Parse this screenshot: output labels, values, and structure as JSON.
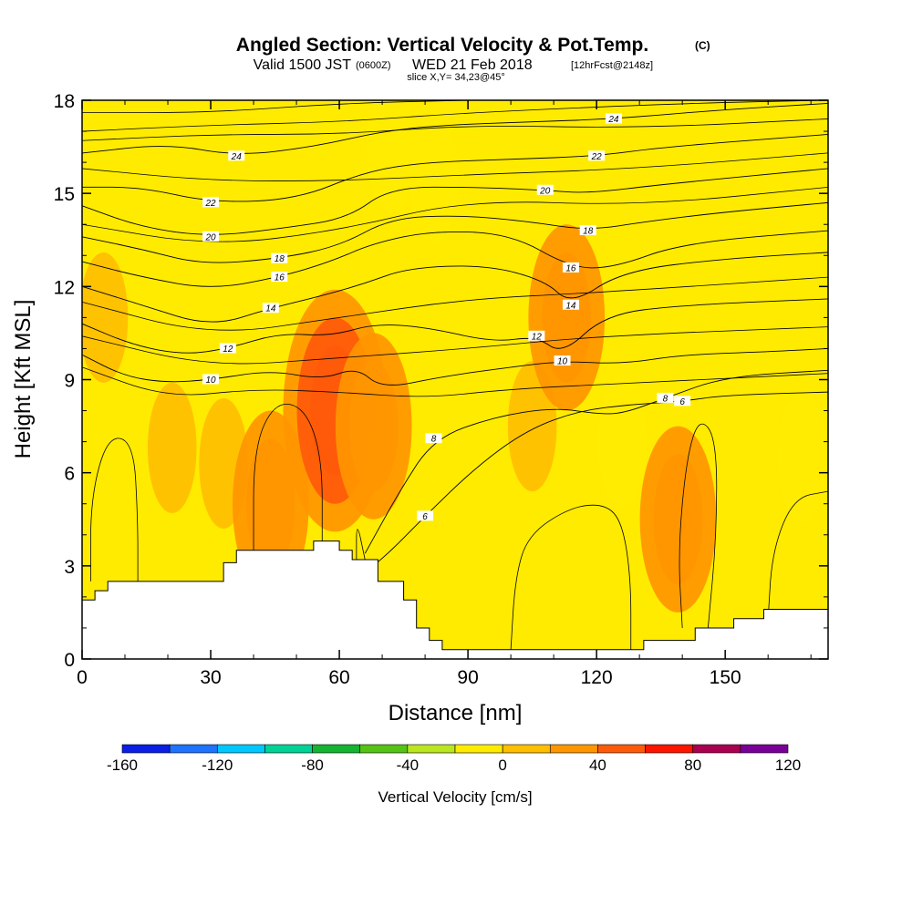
{
  "chart_data": {
    "type": "heatmap",
    "title": "Angled Section: Vertical Velocity & Pot.Temp.",
    "title_tag": "(C)",
    "subtitle": {
      "valid": "Valid 1500 JST",
      "utc": "(0600Z)",
      "date": "WED 21 Feb 2018",
      "forecast": "[12hrFcst@2148z]",
      "slice": "slice X,Y= 34,23@45°"
    },
    "xlabel": "Distance [nm]",
    "ylabel": "Height [Kft MSL]",
    "xlim": [
      0,
      174
    ],
    "ylim": [
      0,
      18
    ],
    "x_ticks": [
      0,
      30,
      60,
      90,
      120,
      150
    ],
    "x_tick_labels": [
      "0",
      "30",
      "60",
      "90",
      "120",
      "150"
    ],
    "y_ticks": [
      0,
      3,
      6,
      9,
      12,
      15,
      18
    ],
    "y_tick_labels": [
      "0",
      "3",
      "6",
      "9",
      "12",
      "15",
      "18"
    ],
    "colorbar": {
      "title": "Vertical Velocity [cm/s]",
      "min": -160,
      "max": 120,
      "step": 20,
      "tick_labels": [
        "-160",
        "-120",
        "-80",
        "-40",
        "0",
        "40",
        "80",
        "120"
      ],
      "colors": [
        "#0a1ee6",
        "#1e73ff",
        "#00c8ff",
        "#00d296",
        "#14b432",
        "#55c314",
        "#b9e61e",
        "#ffeb00",
        "#ffbe00",
        "#ff9600",
        "#ff5a0a",
        "#ff1400",
        "#aa0050",
        "#780096"
      ]
    },
    "velocity_cells": [
      {
        "x": 5,
        "z": 11,
        "w": 8
      },
      {
        "x": 21,
        "z": 6.8,
        "w": 14
      },
      {
        "x": 33,
        "z": 6.3,
        "w": 12
      },
      {
        "x": 44,
        "z": 5,
        "w": 22
      },
      {
        "x": 59,
        "z": 8,
        "w": 45
      },
      {
        "x": 68,
        "z": 7.5,
        "w": 38
      },
      {
        "x": 82,
        "z": 15.5,
        "w": -7
      },
      {
        "x": 72,
        "z": 16.5,
        "w": -12
      },
      {
        "x": 105,
        "z": 7.5,
        "w": 6
      },
      {
        "x": 113,
        "z": 11,
        "w": 30
      },
      {
        "x": 126,
        "z": 7,
        "w": -7
      },
      {
        "x": 139,
        "z": 4.5,
        "w": 28
      },
      {
        "x": 168,
        "z": 6.5,
        "w": -6
      }
    ],
    "terrain": [
      [
        0,
        1.9
      ],
      [
        3,
        1.9
      ],
      [
        3,
        2.2
      ],
      [
        6,
        2.2
      ],
      [
        6,
        2.5
      ],
      [
        33,
        2.5
      ],
      [
        33,
        3.1
      ],
      [
        36,
        3.1
      ],
      [
        36,
        3.5
      ],
      [
        54,
        3.5
      ],
      [
        54,
        3.8
      ],
      [
        60,
        3.8
      ],
      [
        60,
        3.5
      ],
      [
        63,
        3.5
      ],
      [
        63,
        3.2
      ],
      [
        69,
        3.2
      ],
      [
        69,
        2.5
      ],
      [
        75,
        2.5
      ],
      [
        75,
        1.9
      ],
      [
        78,
        1.9
      ],
      [
        78,
        1.0
      ],
      [
        81,
        1.0
      ],
      [
        81,
        0.6
      ],
      [
        84,
        0.6
      ],
      [
        84,
        0.3
      ],
      [
        131,
        0.3
      ],
      [
        131,
        0.6
      ],
      [
        143,
        0.6
      ],
      [
        143,
        1.0
      ],
      [
        152,
        1.0
      ],
      [
        152,
        1.3
      ],
      [
        159,
        1.3
      ],
      [
        159,
        1.6
      ],
      [
        174,
        1.6
      ]
    ],
    "theta_contours": [
      {
        "level": "6",
        "points": [
          [
            62,
            2.4
          ],
          [
            70,
            3.2
          ],
          [
            80,
            4.6
          ],
          [
            92,
            6.2
          ],
          [
            104,
            7.4
          ],
          [
            116,
            8.0
          ],
          [
            128,
            8.2
          ],
          [
            140,
            8.3
          ],
          [
            150,
            8.5
          ],
          [
            174,
            8.6
          ]
        ]
      },
      {
        "level": "8",
        "points": [
          [
            66,
            3.4
          ],
          [
            74,
            5.4
          ],
          [
            82,
            7.1
          ],
          [
            96,
            7.8
          ],
          [
            110,
            8.1
          ],
          [
            120,
            7.9
          ],
          [
            126,
            7.9
          ],
          [
            136,
            8.4
          ],
          [
            150,
            9.1
          ],
          [
            174,
            9.3
          ]
        ]
      },
      {
        "level": "10",
        "points": [
          [
            0,
            9.8
          ],
          [
            10,
            9.1
          ],
          [
            20,
            8.9
          ],
          [
            30,
            9.0
          ],
          [
            44,
            9.3
          ],
          [
            56,
            9.0
          ],
          [
            64,
            9.4
          ],
          [
            70,
            8.7
          ],
          [
            84,
            9.1
          ],
          [
            100,
            9.4
          ],
          [
            112,
            9.6
          ],
          [
            126,
            9.5
          ],
          [
            140,
            9.8
          ],
          [
            160,
            9.9
          ],
          [
            174,
            10.0
          ]
        ]
      },
      {
        "level": "12",
        "points": [
          [
            0,
            10.8
          ],
          [
            12,
            10.1
          ],
          [
            24,
            9.8
          ],
          [
            34,
            10.0
          ],
          [
            46,
            10.5
          ],
          [
            58,
            10.4
          ],
          [
            68,
            10.8
          ],
          [
            80,
            10.7
          ],
          [
            96,
            10.2
          ],
          [
            106,
            10.4
          ],
          [
            112,
            9.8
          ],
          [
            122,
            11.1
          ],
          [
            140,
            11.4
          ],
          [
            174,
            11.6
          ]
        ]
      },
      {
        "level": "14",
        "points": [
          [
            0,
            12.0
          ],
          [
            14,
            11.4
          ],
          [
            30,
            10.7
          ],
          [
            44,
            11.3
          ],
          [
            56,
            11.7
          ],
          [
            66,
            12.1
          ],
          [
            76,
            12.6
          ],
          [
            94,
            12.7
          ],
          [
            108,
            12.2
          ],
          [
            114,
            11.4
          ],
          [
            126,
            12.5
          ],
          [
            150,
            12.9
          ],
          [
            174,
            13.1
          ]
        ]
      },
      {
        "level": "16",
        "points": [
          [
            0,
            12.8
          ],
          [
            14,
            12.3
          ],
          [
            30,
            11.9
          ],
          [
            46,
            12.3
          ],
          [
            58,
            12.8
          ],
          [
            68,
            13.4
          ],
          [
            82,
            13.8
          ],
          [
            100,
            13.7
          ],
          [
            114,
            12.6
          ],
          [
            124,
            12.6
          ],
          [
            140,
            13.4
          ],
          [
            174,
            13.8
          ]
        ]
      },
      {
        "level": "18",
        "points": [
          [
            0,
            13.6
          ],
          [
            14,
            13.2
          ],
          [
            28,
            12.7
          ],
          [
            46,
            12.9
          ],
          [
            60,
            13.3
          ],
          [
            72,
            14.2
          ],
          [
            88,
            14.3
          ],
          [
            104,
            14.1
          ],
          [
            118,
            13.8
          ],
          [
            132,
            14.1
          ],
          [
            150,
            14.4
          ],
          [
            174,
            14.7
          ]
        ]
      },
      {
        "level": "20",
        "points": [
          [
            0,
            14.6
          ],
          [
            14,
            13.9
          ],
          [
            30,
            13.6
          ],
          [
            48,
            13.9
          ],
          [
            62,
            14.2
          ],
          [
            72,
            15.2
          ],
          [
            92,
            15.2
          ],
          [
            108,
            15.1
          ],
          [
            118,
            15.0
          ],
          [
            136,
            15.3
          ],
          [
            174,
            15.8
          ]
        ]
      },
      {
        "level": "22",
        "points": [
          [
            0,
            15.2
          ],
          [
            14,
            15.2
          ],
          [
            30,
            14.7
          ],
          [
            50,
            14.8
          ],
          [
            66,
            15.7
          ],
          [
            80,
            16.0
          ],
          [
            100,
            16.1
          ],
          [
            120,
            16.2
          ],
          [
            136,
            16.5
          ],
          [
            174,
            16.9
          ]
        ]
      },
      {
        "level": "24",
        "points": [
          [
            0,
            16.3
          ],
          [
            20,
            16.6
          ],
          [
            36,
            16.2
          ],
          [
            54,
            16.5
          ],
          [
            70,
            17.0
          ],
          [
            84,
            17.2
          ],
          [
            104,
            17.3
          ],
          [
            124,
            17.4
          ],
          [
            150,
            17.7
          ],
          [
            174,
            17.9
          ]
        ]
      }
    ],
    "theta_extra_lines": [
      [
        [
          0,
          17.6
        ],
        [
          30,
          17.6
        ],
        [
          60,
          17.9
        ],
        [
          90,
          18.0
        ]
      ],
      [
        [
          0,
          17.0
        ],
        [
          30,
          17.2
        ],
        [
          60,
          17.3
        ],
        [
          90,
          17.6
        ],
        [
          140,
          17.9
        ],
        [
          174,
          18.0
        ]
      ],
      [
        [
          0,
          16.7
        ],
        [
          30,
          16.9
        ],
        [
          60,
          16.9
        ],
        [
          90,
          17.2
        ],
        [
          130,
          17.1
        ],
        [
          174,
          17.4
        ]
      ],
      [
        [
          0,
          15.8
        ],
        [
          30,
          15.4
        ],
        [
          60,
          15.4
        ],
        [
          90,
          15.6
        ],
        [
          130,
          15.8
        ],
        [
          174,
          16.3
        ]
      ],
      [
        [
          0,
          14.0
        ],
        [
          30,
          13.3
        ],
        [
          60,
          13.8
        ],
        [
          90,
          14.8
        ],
        [
          130,
          14.6
        ],
        [
          174,
          15.2
        ]
      ],
      [
        [
          0,
          11.5
        ],
        [
          30,
          10.4
        ],
        [
          60,
          11.0
        ],
        [
          90,
          11.6
        ],
        [
          120,
          11.8
        ],
        [
          174,
          12.3
        ]
      ],
      [
        [
          0,
          10.4
        ],
        [
          30,
          9.4
        ],
        [
          60,
          9.7
        ],
        [
          90,
          10.0
        ],
        [
          120,
          10.4
        ],
        [
          174,
          10.7
        ]
      ],
      [
        [
          0,
          9.4
        ],
        [
          20,
          8.4
        ],
        [
          40,
          8.7
        ],
        [
          60,
          8.6
        ],
        [
          80,
          8.4
        ],
        [
          100,
          8.7
        ],
        [
          130,
          8.9
        ],
        [
          174,
          9.2
        ]
      ]
    ],
    "theta_closed_contours": [
      [
        [
          2,
          2.5
        ],
        [
          2,
          5.2
        ],
        [
          6,
          7.2
        ],
        [
          12,
          7.0
        ],
        [
          13,
          4.5
        ],
        [
          13,
          2.5
        ]
      ],
      [
        [
          40,
          3.5
        ],
        [
          40,
          6.8
        ],
        [
          45,
          8.3
        ],
        [
          52,
          8.1
        ],
        [
          56,
          6.5
        ],
        [
          56,
          3.8
        ]
      ],
      [
        [
          64,
          3.2
        ],
        [
          64,
          4.5
        ],
        [
          66,
          3.2
        ]
      ],
      [
        [
          100,
          0.3
        ],
        [
          101,
          2.6
        ],
        [
          104,
          4.0
        ],
        [
          114,
          4.9
        ],
        [
          122,
          5.0
        ],
        [
          126,
          4.4
        ],
        [
          128,
          2.6
        ],
        [
          128,
          0.3
        ]
      ],
      [
        [
          140,
          1.0
        ],
        [
          139,
          3.5
        ],
        [
          141,
          6.5
        ],
        [
          144,
          7.8
        ],
        [
          148,
          7.1
        ],
        [
          148,
          4.0
        ],
        [
          146,
          1.0
        ]
      ],
      [
        [
          160,
          1.3
        ],
        [
          161,
          3.5
        ],
        [
          166,
          5.2
        ],
        [
          174,
          5.4
        ]
      ]
    ]
  }
}
